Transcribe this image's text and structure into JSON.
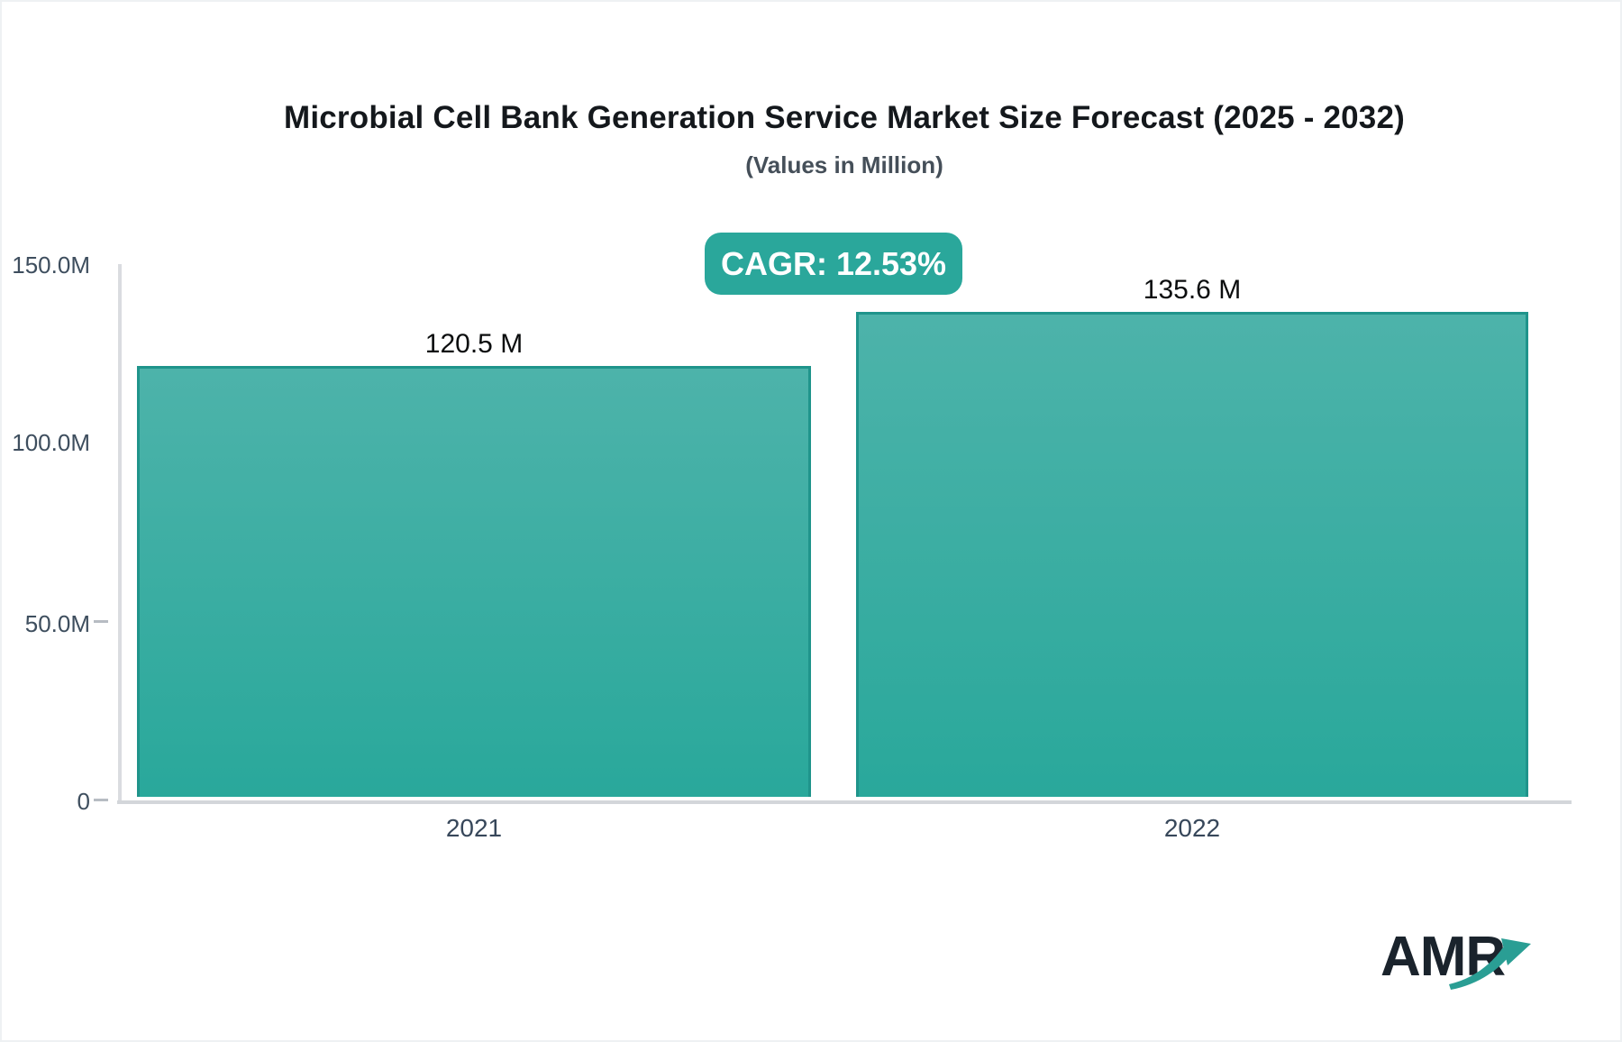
{
  "header": {
    "title": "Microbial Cell Bank Generation Service Market Size Forecast (2025 - 2032)",
    "subtitle": "(Values in Million)",
    "cagr_badge": "CAGR: 12.53%"
  },
  "chart_data": {
    "type": "bar",
    "title": "Microbial Cell Bank Generation Service Market Size Forecast (2025 - 2032)",
    "subtitle": "(Values in Million)",
    "unit": "Million",
    "cagr_percent": 12.53,
    "categories": [
      "2021",
      "2022"
    ],
    "values": [
      120.5,
      135.6
    ],
    "value_labels": [
      "120.5 M",
      "135.6 M"
    ],
    "ylim": [
      0,
      150
    ],
    "y_tick_labels": [
      "150.0M",
      "100.0M",
      "50.0M",
      "0"
    ],
    "y_tick_values": [
      150,
      100,
      50,
      0
    ],
    "grid": false,
    "legend": "none",
    "colors": {
      "bar_gradient_top": "#4db3aa",
      "bar_gradient_bottom": "#29a89b",
      "bar_border": "#1f948b",
      "badge_bg": "#2aa79b",
      "badge_text": "#ffffff",
      "axis_line": "#d5d8dc",
      "tick_label": "#3e4e5e",
      "value_label": "#0b0d0e"
    }
  },
  "logo": {
    "text": "AMR",
    "arrow_color": "#2a9e94"
  }
}
